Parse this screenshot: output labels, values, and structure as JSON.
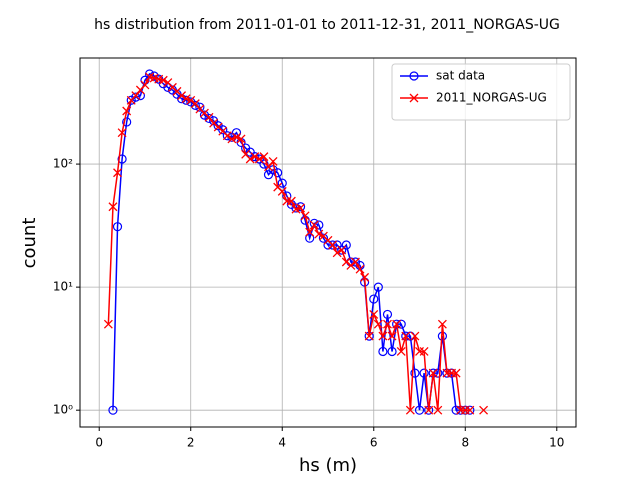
{
  "chart_data": {
    "type": "line",
    "title": "hs distribution from 2011-01-01 to 2011-12-31, 2011_NORGAS-UG",
    "xlabel": "hs (m)",
    "ylabel": "count",
    "x": [
      0.2,
      0.3,
      0.4,
      0.5,
      0.6,
      0.7,
      0.8,
      0.9,
      1.0,
      1.1,
      1.2,
      1.3,
      1.4,
      1.5,
      1.6,
      1.7,
      1.8,
      1.9,
      2.0,
      2.1,
      2.2,
      2.3,
      2.4,
      2.5,
      2.6,
      2.7,
      2.8,
      2.9,
      3.0,
      3.1,
      3.2,
      3.3,
      3.4,
      3.5,
      3.6,
      3.7,
      3.8,
      3.9,
      4.0,
      4.1,
      4.2,
      4.3,
      4.4,
      4.5,
      4.6,
      4.7,
      4.8,
      4.9,
      5.0,
      5.1,
      5.2,
      5.3,
      5.4,
      5.5,
      5.6,
      5.7,
      5.8,
      5.9,
      6.0,
      6.1,
      6.2,
      6.3,
      6.4,
      6.5,
      6.6,
      6.7,
      6.8,
      6.9,
      7.0,
      7.1,
      7.2,
      7.3,
      7.4,
      7.5,
      7.6,
      7.7,
      7.8,
      7.9,
      8.0,
      8.1,
      8.2,
      8.3,
      8.4
    ],
    "series": [
      {
        "name": "sat data",
        "color": "#0000ff",
        "marker": "o",
        "values": [
          null,
          1,
          31,
          110,
          220,
          330,
          350,
          360,
          480,
          540,
          520,
          490,
          450,
          420,
          400,
          370,
          340,
          330,
          320,
          300,
          290,
          250,
          235,
          225,
          205,
          190,
          170,
          165,
          180,
          150,
          135,
          125,
          115,
          110,
          100,
          82,
          90,
          85,
          70,
          55,
          47,
          44,
          45,
          35,
          25,
          33,
          32,
          25,
          22,
          22,
          22,
          20,
          22,
          16,
          16,
          15,
          11,
          4,
          8,
          10,
          3,
          6,
          3,
          5,
          5,
          4,
          4,
          2,
          1,
          2,
          1,
          2,
          2,
          4,
          2,
          2,
          1,
          1,
          1,
          1,
          null,
          null,
          null
        ]
      },
      {
        "name": "2011_NORGAS-UG",
        "color": "#ff0000",
        "marker": "x",
        "values": [
          5,
          45,
          85,
          180,
          270,
          330,
          360,
          400,
          440,
          510,
          500,
          490,
          480,
          460,
          420,
          390,
          360,
          340,
          330,
          310,
          280,
          260,
          240,
          215,
          200,
          185,
          170,
          160,
          165,
          160,
          120,
          110,
          115,
          110,
          115,
          95,
          105,
          65,
          60,
          50,
          50,
          43,
          44,
          38,
          28,
          32,
          27,
          26,
          24,
          22,
          19,
          20,
          16,
          15,
          16,
          14,
          12,
          4,
          6,
          5,
          4,
          5,
          4,
          5,
          3,
          4,
          1,
          4,
          3,
          3,
          1,
          2,
          1,
          5,
          2,
          2,
          2,
          1,
          1,
          1,
          null,
          null,
          1
        ]
      }
    ],
    "xlim": [
      -0.42,
      10.42
    ],
    "xticks": [
      0,
      2,
      4,
      6,
      8,
      10
    ],
    "ylim": [
      0.73,
      728
    ],
    "yscale": "log",
    "yticks": [
      {
        "value": 1,
        "label": "10⁰"
      },
      {
        "value": 10,
        "label": "10¹"
      },
      {
        "value": 100,
        "label": "10²"
      }
    ],
    "grid": true,
    "legend": "upper right"
  }
}
